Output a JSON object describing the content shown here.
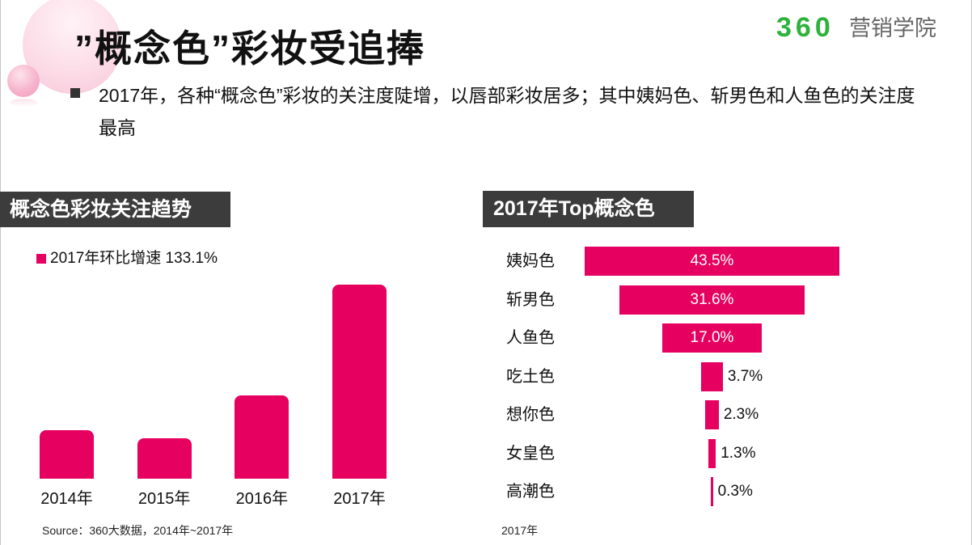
{
  "slide": {
    "title": "”概念色”彩妆受追捧",
    "bullet": "2017年，各种“概念色”彩妆的关注度陡增，以唇部彩妆居多；其中姨妈色、斩男色和人鱼色的关注度最高"
  },
  "logo": {
    "brand": "360",
    "name": "营销学院",
    "brand_color": "#2eb23c",
    "name_color": "#666666"
  },
  "colors": {
    "accent": "#e6005f",
    "header_bg": "#3c3c3c"
  },
  "chart_data": [
    {
      "type": "bar",
      "title": "概念色彩妆关注趋势",
      "legend": "2017年环比增速 133.1%",
      "legend_position": "top-left",
      "grid": false,
      "categories": [
        "2014年",
        "2015年",
        "2016年",
        "2017年"
      ],
      "values": [
        25,
        21,
        43,
        100
      ],
      "source": "Source：360大数据，2014年~2017年"
    },
    {
      "type": "bar",
      "orientation": "horizontal",
      "title": "2017年Top概念色",
      "grid": false,
      "categories": [
        "姨妈色",
        "斩男色",
        "人鱼色",
        "吃土色",
        "想你色",
        "女皇色",
        "高潮色"
      ],
      "values": [
        43.5,
        31.6,
        17.0,
        3.7,
        2.3,
        1.3,
        0.3
      ],
      "value_labels": [
        "43.5%",
        "31.6%",
        "17.0%",
        "3.7%",
        "2.3%",
        "1.3%",
        "0.3%"
      ],
      "caption": "2017年"
    }
  ]
}
